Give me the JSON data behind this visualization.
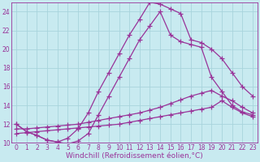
{
  "background_color": "#c8eaf0",
  "grid_color": "#a8d4dc",
  "line_color": "#993399",
  "xlabel": "Windchill (Refroidissement éolien,°C)",
  "xlim": [
    -0.5,
    23.5
  ],
  "ylim": [
    10,
    25
  ],
  "yticks": [
    10,
    12,
    14,
    16,
    18,
    20,
    22,
    24
  ],
  "xticks": [
    0,
    1,
    2,
    3,
    4,
    5,
    6,
    7,
    8,
    9,
    10,
    11,
    12,
    13,
    14,
    15,
    16,
    17,
    18,
    19,
    20,
    21,
    22,
    23
  ],
  "series": [
    {
      "x": [
        0,
        1,
        2,
        3,
        4,
        5,
        6,
        7,
        8,
        9,
        10,
        11,
        12,
        13,
        14,
        15,
        16,
        17,
        18,
        19,
        20,
        21,
        22,
        23
      ],
      "y": [
        12.0,
        11.2,
        10.8,
        10.3,
        10.1,
        10.5,
        11.5,
        13.2,
        15.5,
        17.5,
        19.5,
        21.5,
        23.2,
        25.0,
        24.8,
        24.3,
        23.8,
        21.0,
        20.7,
        20.0,
        19.0,
        17.5,
        16.0,
        15.0
      ]
    },
    {
      "x": [
        0,
        1,
        2,
        3,
        4,
        5,
        6,
        7,
        8,
        9,
        10,
        11,
        12,
        13,
        14,
        15,
        16,
        17,
        18,
        19,
        20,
        21,
        22,
        23
      ],
      "y": [
        12.0,
        11.2,
        10.8,
        10.3,
        10.1,
        9.9,
        10.2,
        11.0,
        13.0,
        15.0,
        17.0,
        19.0,
        21.0,
        22.5,
        24.0,
        21.5,
        20.8,
        20.5,
        20.2,
        17.0,
        15.5,
        14.0,
        13.3,
        13.0
      ]
    },
    {
      "x": [
        0,
        1,
        2,
        3,
        4,
        5,
        6,
        7,
        8,
        9,
        10,
        11,
        12,
        13,
        14,
        15,
        16,
        17,
        18,
        19,
        20,
        21,
        22,
        23
      ],
      "y": [
        11.5,
        11.5,
        11.6,
        11.7,
        11.8,
        11.9,
        12.0,
        12.2,
        12.4,
        12.6,
        12.8,
        13.0,
        13.2,
        13.5,
        13.8,
        14.2,
        14.6,
        15.0,
        15.3,
        15.6,
        15.0,
        14.5,
        13.8,
        13.2
      ]
    },
    {
      "x": [
        0,
        1,
        2,
        3,
        4,
        5,
        6,
        7,
        8,
        9,
        10,
        11,
        12,
        13,
        14,
        15,
        16,
        17,
        18,
        19,
        20,
        21,
        22,
        23
      ],
      "y": [
        11.0,
        11.1,
        11.2,
        11.3,
        11.4,
        11.5,
        11.6,
        11.7,
        11.8,
        11.9,
        12.0,
        12.2,
        12.4,
        12.6,
        12.8,
        13.0,
        13.2,
        13.4,
        13.6,
        13.8,
        14.5,
        13.8,
        13.2,
        12.8
      ]
    }
  ],
  "marker": "+",
  "markersize": 4,
  "linewidth": 0.9,
  "tick_fontsize": 5.5,
  "xlabel_fontsize": 6.5
}
